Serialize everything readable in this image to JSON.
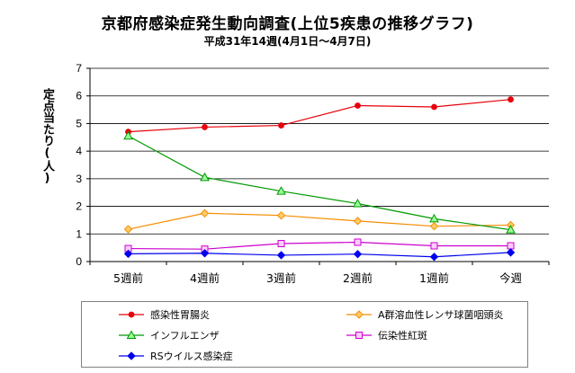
{
  "chart_data": {
    "type": "line",
    "title": "京都府感染症発生動向調査(上位5疾患の推移グラフ)",
    "subtitle": "平成31年14週(4月1日～4月7日)",
    "ylabel": "定点当たり(人)",
    "xlabel": "",
    "ylim": [
      0,
      7
    ],
    "yticks": [
      "0",
      "1",
      "2",
      "3",
      "4",
      "5",
      "6",
      "7"
    ],
    "grid": true,
    "legend_position": "bottom",
    "categories": [
      "5週前",
      "4週前",
      "3週前",
      "2週前",
      "1週前",
      "今週"
    ],
    "series": [
      {
        "name": "感染性胃腸炎",
        "color": "#e8000b",
        "marker": "circle",
        "values": [
          4.7,
          4.87,
          4.93,
          5.65,
          5.6,
          5.87
        ]
      },
      {
        "name": "A群溶血性レンサ球菌咽頭炎",
        "color": "#f58c00",
        "marker": "diamond",
        "values": [
          1.17,
          1.75,
          1.67,
          1.47,
          1.28,
          1.32
        ]
      },
      {
        "name": "インフルエンザ",
        "color": "#009900",
        "marker": "triangle",
        "values": [
          4.55,
          3.05,
          2.55,
          2.1,
          1.55,
          1.15
        ]
      },
      {
        "name": "伝染性紅斑",
        "color": "#cc00cc",
        "marker": "square",
        "values": [
          0.47,
          0.45,
          0.65,
          0.7,
          0.57,
          0.57
        ]
      },
      {
        "name": "RSウイルス感染症",
        "color": "#0000ee",
        "marker": "diamond",
        "values": [
          0.28,
          0.3,
          0.23,
          0.27,
          0.17,
          0.33
        ]
      }
    ]
  }
}
